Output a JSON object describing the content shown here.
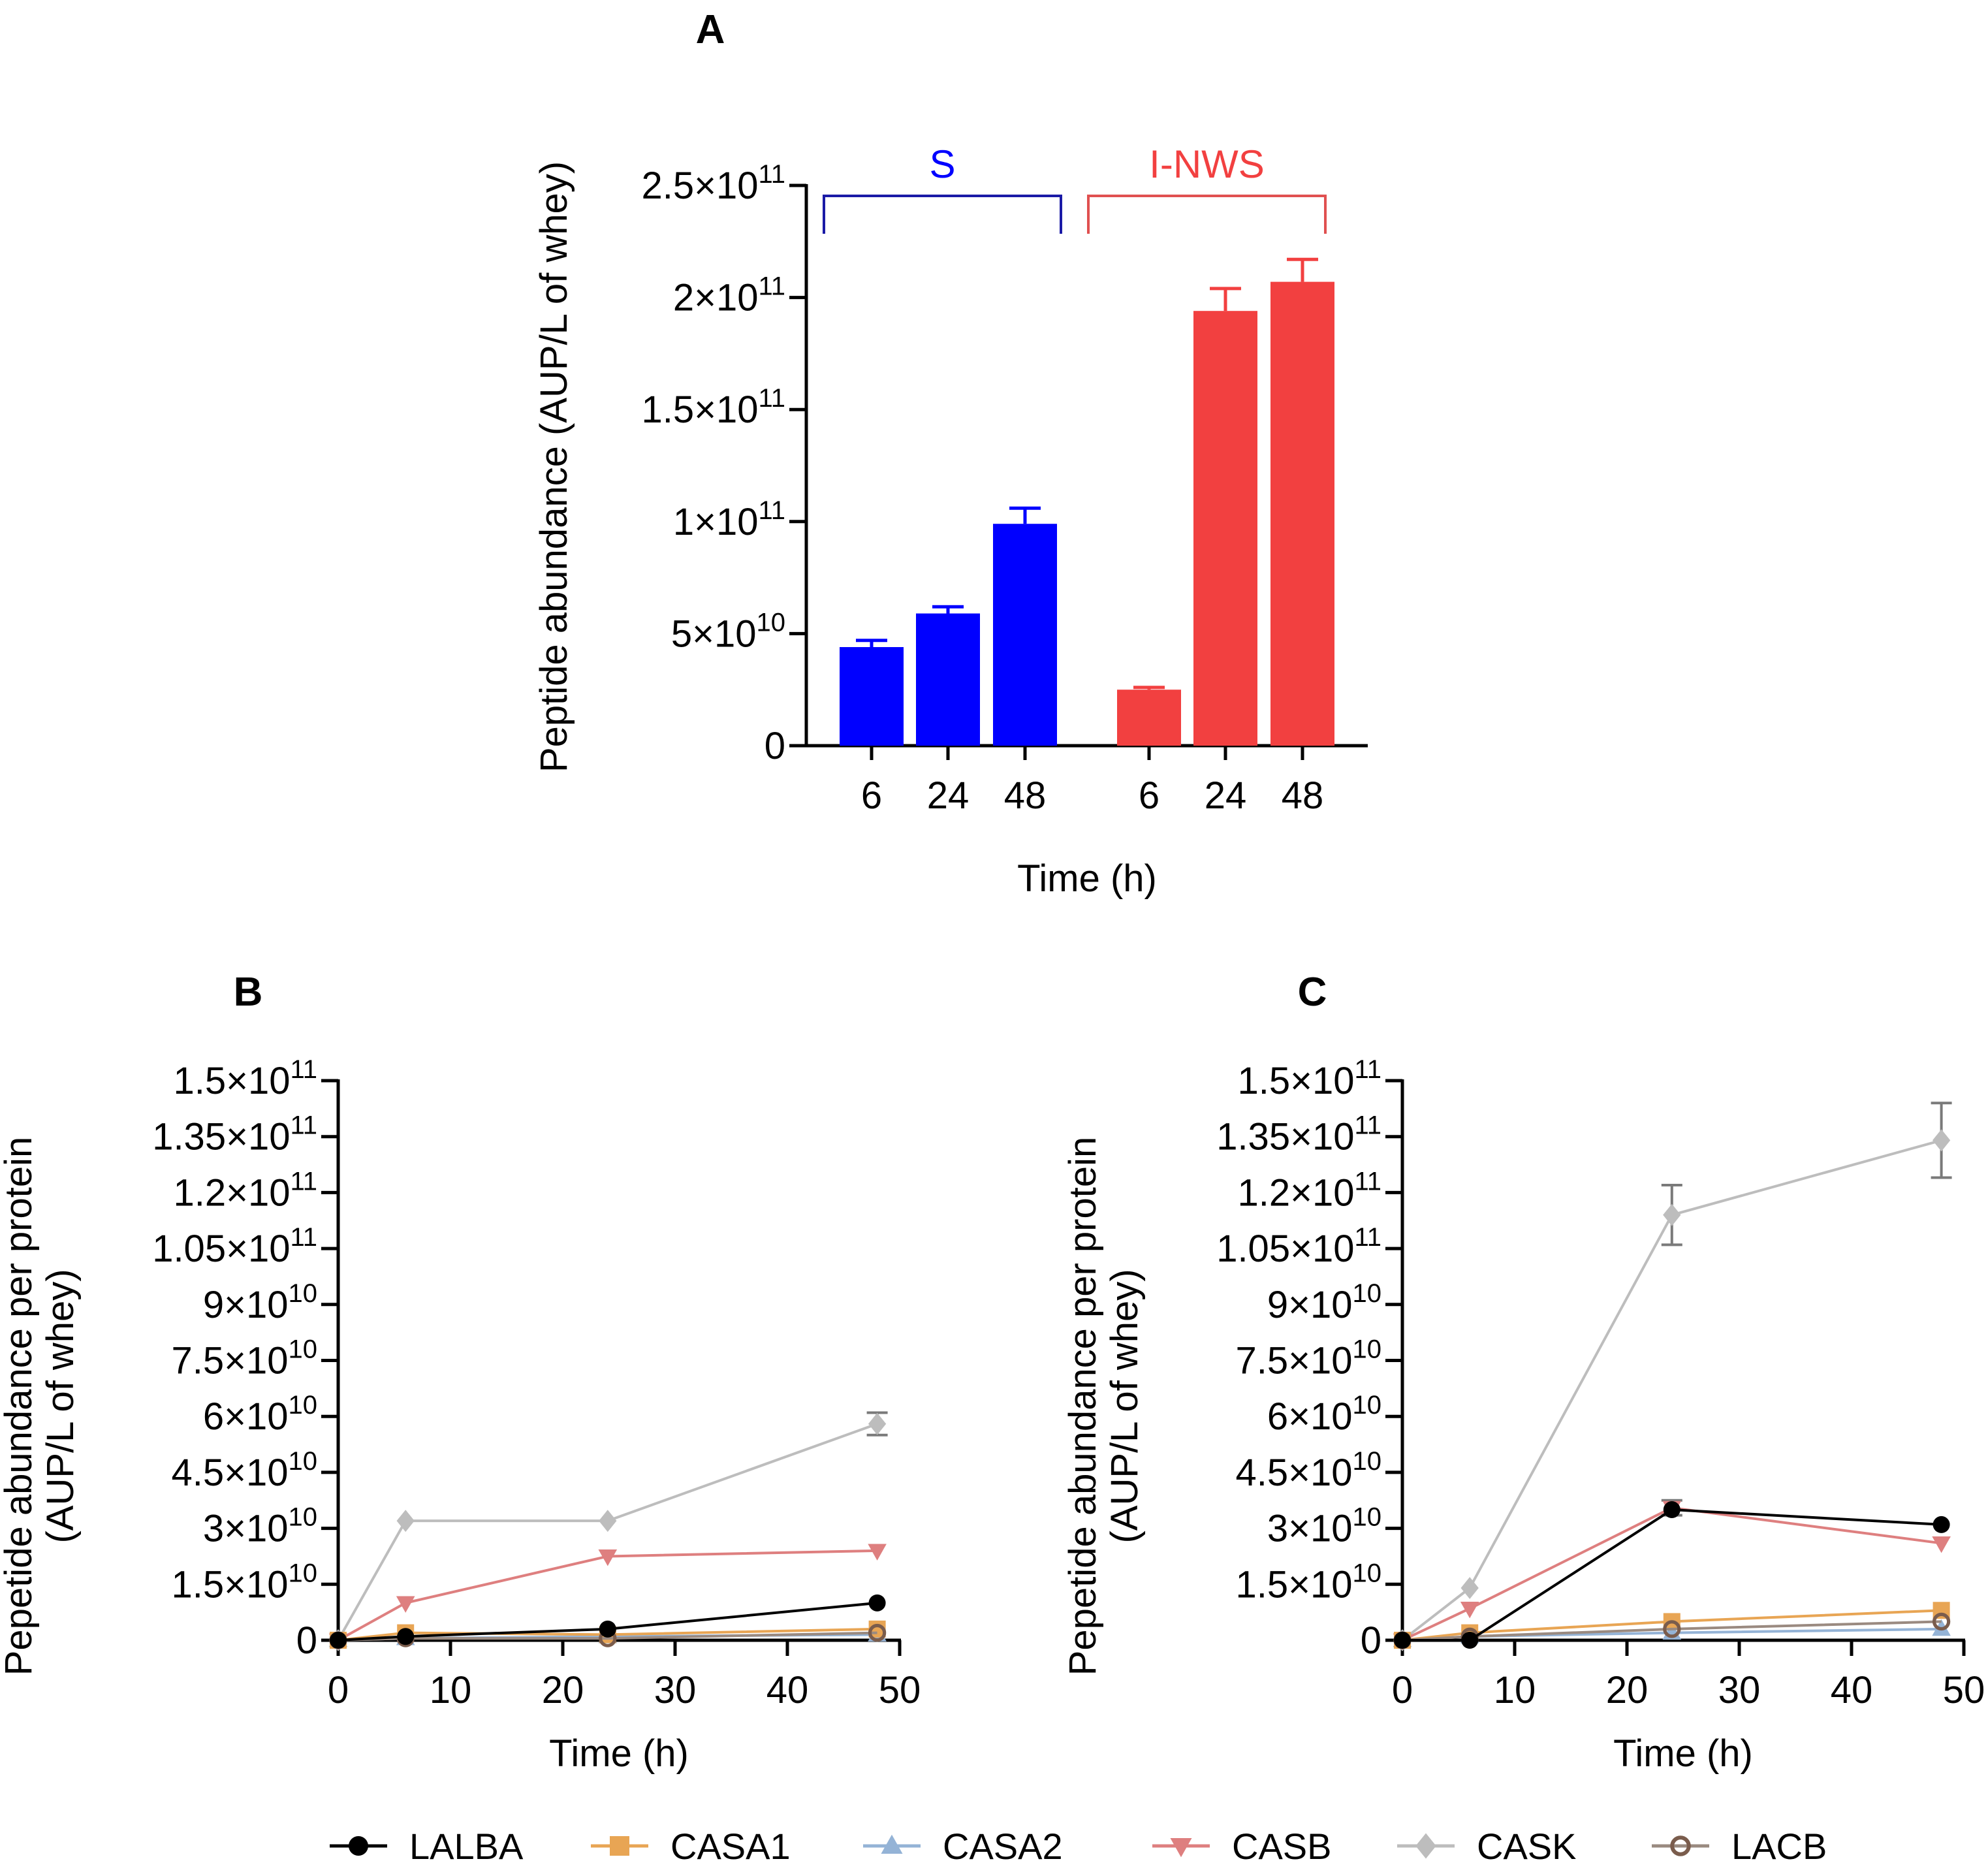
{
  "chart_data": [
    {
      "panel": "A",
      "type": "bar",
      "xlabel": "Time (h)",
      "ylabel": "Peptide abundance (AUP/L of whey)",
      "ylim": [
        0,
        250000000000.0
      ],
      "yticks": [
        {
          "value": 0,
          "mant": "0",
          "exp": ""
        },
        {
          "value": 50000000000.0,
          "mant": "5×10",
          "exp": "10"
        },
        {
          "value": 100000000000.0,
          "mant": "1×10",
          "exp": "11"
        },
        {
          "value": 150000000000.0,
          "mant": "1.5×10",
          "exp": "11"
        },
        {
          "value": 200000000000.0,
          "mant": "2×10",
          "exp": "11"
        },
        {
          "value": 250000000000.0,
          "mant": "2.5×10",
          "exp": "11"
        }
      ],
      "groups": [
        {
          "name": "S",
          "color": "#0000ff",
          "bracket_color": "#1a1aa6",
          "bars": [
            {
              "category": "6",
              "value": 44000000000.0,
              "error": 3000000000.0
            },
            {
              "category": "24",
              "value": 59000000000.0,
              "error": 3000000000.0
            },
            {
              "category": "48",
              "value": 99000000000.0,
              "error": 7000000000.0
            }
          ]
        },
        {
          "name": "I-NWS",
          "color": "#f24040",
          "bracket_color": "#e05050",
          "bars": [
            {
              "category": "6",
              "value": 25000000000.0,
              "error": 1000000000.0
            },
            {
              "category": "24",
              "value": 194000000000.0,
              "error": 10000000000.0
            },
            {
              "category": "48",
              "value": 207000000000.0,
              "error": 10000000000.0
            }
          ]
        }
      ]
    },
    {
      "panel": "B",
      "type": "line",
      "xlabel": "Time (h)",
      "ylabel": [
        "Pepetide abundance per protein",
        "(AUP/L of whey)"
      ],
      "xlim": [
        0,
        50
      ],
      "xticks": [
        0,
        10,
        20,
        30,
        40,
        50
      ],
      "ylim": [
        0,
        150000000000.0
      ],
      "yticks": [
        {
          "value": 0,
          "mant": "0",
          "exp": ""
        },
        {
          "value": 15000000000.0,
          "mant": "1.5×10",
          "exp": "10"
        },
        {
          "value": 30000000000.0,
          "mant": "3×10",
          "exp": "10"
        },
        {
          "value": 45000000000.0,
          "mant": "4.5×10",
          "exp": "10"
        },
        {
          "value": 60000000000.0,
          "mant": "6×10",
          "exp": "10"
        },
        {
          "value": 75000000000.0,
          "mant": "7.5×10",
          "exp": "10"
        },
        {
          "value": 90000000000.0,
          "mant": "9×10",
          "exp": "10"
        },
        {
          "value": 105000000000.0,
          "mant": "1.05×10",
          "exp": "11"
        },
        {
          "value": 120000000000.0,
          "mant": "1.2×10",
          "exp": "11"
        },
        {
          "value": 135000000000.0,
          "mant": "1.35×10",
          "exp": "11"
        },
        {
          "value": 150000000000.0,
          "mant": "1.5×10",
          "exp": "11"
        }
      ],
      "x": [
        0,
        6,
        24,
        48
      ],
      "series": [
        {
          "name": "CASK",
          "values": [
            0,
            32000000000.0,
            32000000000.0,
            58000000000.0
          ],
          "errors": [
            0,
            0,
            0,
            3000000000.0
          ]
        },
        {
          "name": "CASB",
          "values": [
            0,
            10000000000.0,
            22500000000.0,
            24000000000.0
          ],
          "errors": [
            0,
            0,
            0,
            0
          ]
        },
        {
          "name": "CASA2",
          "values": [
            0,
            500000000.0,
            1000000000.0,
            1500000000.0
          ],
          "errors": [
            0,
            0,
            0,
            0
          ]
        },
        {
          "name": "CASA1",
          "values": [
            0,
            2000000000.0,
            1500000000.0,
            3000000000.0
          ],
          "errors": [
            0,
            0,
            0,
            0
          ]
        },
        {
          "name": "LACB",
          "values": [
            0,
            500000000.0,
            500000000.0,
            2000000000.0
          ],
          "errors": [
            0,
            0,
            0,
            0
          ]
        },
        {
          "name": "LALBA",
          "values": [
            0,
            1000000000.0,
            3000000000.0,
            10000000000.0
          ],
          "errors": [
            0,
            0,
            0,
            0
          ]
        }
      ]
    },
    {
      "panel": "C",
      "type": "line",
      "xlabel": "Time (h)",
      "ylabel": [
        "Pepetide abundance per protein",
        "(AUP/L of whey)"
      ],
      "xlim": [
        0,
        50
      ],
      "xticks": [
        0,
        10,
        20,
        30,
        40,
        50
      ],
      "ylim": [
        0,
        150000000000.0
      ],
      "yticks": [
        {
          "value": 0,
          "mant": "0",
          "exp": ""
        },
        {
          "value": 15000000000.0,
          "mant": "1.5×10",
          "exp": "10"
        },
        {
          "value": 30000000000.0,
          "mant": "3×10",
          "exp": "10"
        },
        {
          "value": 45000000000.0,
          "mant": "4.5×10",
          "exp": "10"
        },
        {
          "value": 60000000000.0,
          "mant": "6×10",
          "exp": "10"
        },
        {
          "value": 75000000000.0,
          "mant": "7.5×10",
          "exp": "10"
        },
        {
          "value": 90000000000.0,
          "mant": "9×10",
          "exp": "10"
        },
        {
          "value": 105000000000.0,
          "mant": "1.05×10",
          "exp": "11"
        },
        {
          "value": 120000000000.0,
          "mant": "1.2×10",
          "exp": "11"
        },
        {
          "value": 135000000000.0,
          "mant": "1.35×10",
          "exp": "11"
        },
        {
          "value": 150000000000.0,
          "mant": "1.5×10",
          "exp": "11"
        }
      ],
      "x": [
        0,
        6,
        24,
        48
      ],
      "series": [
        {
          "name": "CASK",
          "values": [
            0,
            14000000000.0,
            114000000000.0,
            134000000000.0
          ],
          "errors": [
            0,
            0,
            8000000000.0,
            10000000000.0
          ]
        },
        {
          "name": "CASB",
          "values": [
            0,
            8500000000.0,
            35500000000.0,
            26000000000.0
          ],
          "errors": [
            0,
            0,
            2000000000.0,
            0
          ]
        },
        {
          "name": "CASA2",
          "values": [
            0,
            1000000000.0,
            2000000000.0,
            3000000000.0
          ],
          "errors": [
            0,
            0,
            0,
            0
          ]
        },
        {
          "name": "CASA1",
          "values": [
            0,
            2000000000.0,
            5000000000.0,
            8000000000.0
          ],
          "errors": [
            0,
            0,
            0,
            0
          ]
        },
        {
          "name": "LACB",
          "values": [
            0,
            1000000000.0,
            3000000000.0,
            5000000000.0
          ],
          "errors": [
            0,
            0,
            0,
            0
          ]
        },
        {
          "name": "LALBA",
          "values": [
            0,
            0,
            35000000000.0,
            31000000000.0
          ],
          "errors": [
            0,
            0,
            0,
            0
          ]
        }
      ]
    }
  ],
  "legend": [
    {
      "name": "LALBA",
      "color": "#000000",
      "line": "#000000",
      "marker": "circle"
    },
    {
      "name": "CASA1",
      "color": "#e8a554",
      "line": "#e8a554",
      "marker": "square"
    },
    {
      "name": "CASA2",
      "color": "#94b3d6",
      "line": "#94b3d6",
      "marker": "triangle-up"
    },
    {
      "name": "CASB",
      "color": "#de7f7f",
      "line": "#de7f7f",
      "marker": "triangle-down"
    },
    {
      "name": "CASK",
      "color": "#bdbdbd",
      "line": "#bdbdbd",
      "marker": "diamond"
    },
    {
      "name": "LACB",
      "color": "#7a5c4c",
      "line": "#9a8a80",
      "marker": "circle-open"
    }
  ]
}
